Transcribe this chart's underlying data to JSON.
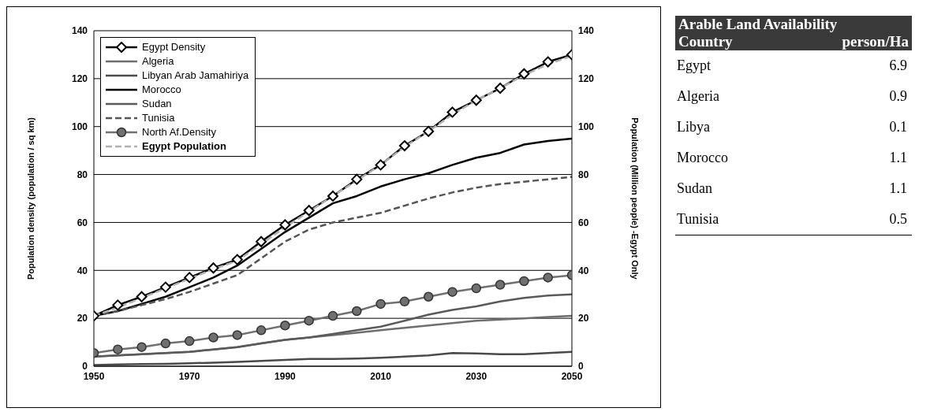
{
  "chart_data": [
    {
      "type": "line",
      "xlabel": null,
      "ylabel": "Population density (population / sq km)",
      "y2label": "Population (Million people) -Egypt Only",
      "x": [
        1950,
        1955,
        1960,
        1965,
        1970,
        1975,
        1980,
        1985,
        1990,
        1995,
        2000,
        2005,
        2010,
        2015,
        2020,
        2025,
        2030,
        2035,
        2040,
        2045,
        2050
      ],
      "xlim": [
        1950,
        2050
      ],
      "xticks": [
        1950,
        1970,
        1990,
        2010,
        2030,
        2050
      ],
      "ylim": [
        0,
        140
      ],
      "yticks": [
        0,
        20,
        40,
        60,
        80,
        100,
        120,
        140
      ],
      "y2lim": [
        0,
        140
      ],
      "y2ticks": [
        0,
        20,
        40,
        60,
        80,
        100,
        120,
        140
      ],
      "grid": "y",
      "legend": "top left",
      "series": [
        {
          "name": "Egypt Density",
          "color": "#000000",
          "marker": "diamond",
          "line_style": "solid",
          "values": [
            21,
            25.5,
            29,
            33,
            37,
            41,
            44.5,
            52,
            59,
            65,
            71,
            78,
            84,
            92,
            98,
            106,
            111,
            116,
            122,
            127,
            130
          ]
        },
        {
          "name": "Algeria",
          "color": "#6e6e6e",
          "marker": "none",
          "line_style": "solid",
          "values": [
            4,
            4.5,
            5,
            5.5,
            6,
            7,
            8,
            9.5,
            11,
            12,
            13,
            14,
            15,
            16,
            17,
            18,
            19,
            19.5,
            20,
            20.5,
            21
          ]
        },
        {
          "name": "Libyan Arab Jamahiriya",
          "color": "#4a4a4a",
          "marker": "none",
          "line_style": "solid",
          "values": [
            0.5,
            0.7,
            0.9,
            1,
            1.2,
            1.5,
            1.8,
            2.2,
            2.6,
            3,
            3,
            3.2,
            3.5,
            4,
            4.5,
            5.5,
            5.3,
            5,
            5,
            5.5,
            6
          ]
        },
        {
          "name": "Morocco",
          "color": "#000000",
          "marker": "none",
          "line_style": "solid",
          "values": [
            21,
            23,
            26,
            29,
            33,
            37,
            42,
            49,
            56,
            62,
            68,
            71,
            75,
            78,
            80.5,
            84,
            87,
            89,
            92.5,
            94,
            95
          ]
        },
        {
          "name": "Sudan",
          "color": "#5a5a5a",
          "marker": "none",
          "line_style": "solid",
          "values": [
            4,
            4.5,
            5,
            5.5,
            6,
            7,
            8,
            9.5,
            11,
            12,
            13.5,
            15,
            16.5,
            19,
            21.5,
            23.5,
            25,
            27,
            28.5,
            29.5,
            30
          ]
        },
        {
          "name": "Tunisia",
          "color": "#555555",
          "marker": "none",
          "line_style": "dashed",
          "values": [
            21,
            23,
            25.5,
            28,
            31,
            34.5,
            38,
            45,
            52,
            57,
            60,
            62,
            64,
            67,
            70,
            72.5,
            74.5,
            76,
            77,
            78,
            79
          ]
        },
        {
          "name": "North Af.Density",
          "color": "#707070",
          "marker": "circle",
          "line_style": "solid",
          "values": [
            5.5,
            7,
            8,
            9.5,
            10.5,
            12,
            13,
            15,
            17,
            19,
            21,
            23,
            26,
            27,
            29,
            31,
            32.5,
            34,
            35.5,
            37,
            38
          ]
        },
        {
          "name": "Egypt Population",
          "color": "#b0b0b0",
          "marker": "none",
          "line_style": "dashed",
          "axis": "y2",
          "values": [
            21,
            24.5,
            28.5,
            32.5,
            36.5,
            40.5,
            44,
            51,
            58,
            64.5,
            71,
            77.5,
            84,
            91.5,
            98,
            105,
            111,
            116,
            121.5,
            126,
            129.5
          ]
        }
      ]
    },
    {
      "type": "other",
      "title": "Arable Land Availability",
      "xlabel": "Country",
      "ylabel": "person/Ha",
      "categories": [
        "Egypt",
        "Algeria",
        "Libya",
        "Morocco",
        "Sudan",
        "Tunisia"
      ],
      "values": [
        6.9,
        0.9,
        0.1,
        1.1,
        1.1,
        0.5
      ],
      "data_labels": true
    }
  ]
}
